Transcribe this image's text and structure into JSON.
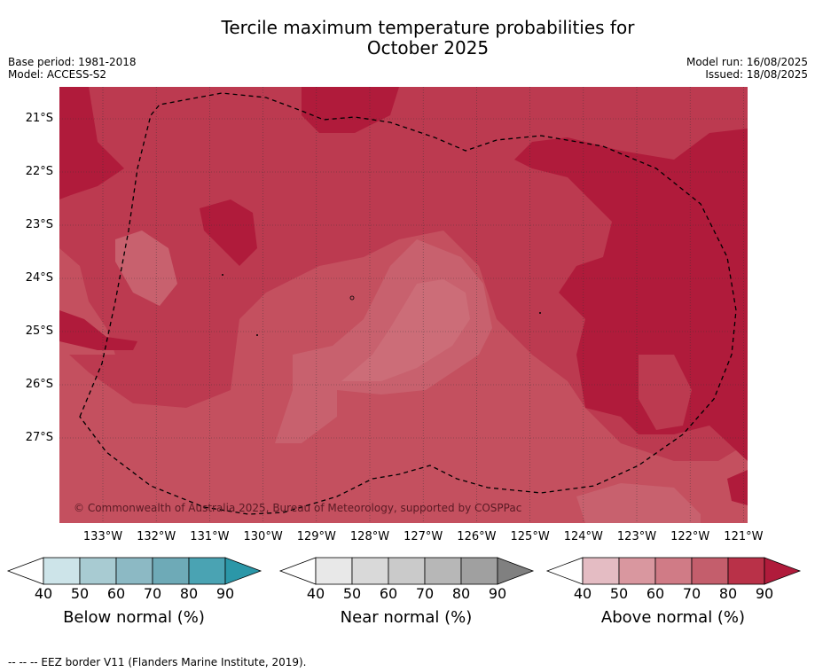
{
  "title_line1": "Tercile maximum temperature probabilities for",
  "title_line2": "October 2025",
  "base_period": "Base period: 1981-2018",
  "model": "Model: ACCESS-S2",
  "model_run": "Model run: 16/08/2025",
  "issued": "Issued: 18/08/2025",
  "copyright": "© Commonwealth of Australia 2025, Bureau of Meteorology, supported by COSPPac",
  "lat_labels": [
    "21°S",
    "22°S",
    "23°S",
    "24°S",
    "25°S",
    "26°S",
    "27°S"
  ],
  "lon_labels": [
    "133°W",
    "132°W",
    "131°W",
    "130°W",
    "129°W",
    "128°W",
    "127°W",
    "126°W",
    "125°W",
    "124°W",
    "123°W",
    "122°W",
    "121°W"
  ],
  "legend": {
    "below": {
      "title": "Below normal (%)",
      "colors": [
        "#cde4e9",
        "#a8cbd2",
        "#8cb9c4",
        "#6eaab7",
        "#4aa3b3",
        "#2b97a8"
      ]
    },
    "near": {
      "title": "Near normal (%)",
      "colors": [
        "#e8e8e8",
        "#d9d9d9",
        "#cacaca",
        "#b7b7b7",
        "#a0a0a0",
        "#808080"
      ]
    },
    "above": {
      "title": "Above normal (%)",
      "colors": [
        "#e4bcc3",
        "#d9979f",
        "#d07b86",
        "#c45e6c",
        "#b93148",
        "#b01b3b"
      ]
    },
    "ticks": [
      "40",
      "50",
      "60",
      "70",
      "80",
      "90"
    ]
  },
  "footnote": "-- -- -- EEZ border V11 (Flanders Marine Institute, 2019)."
}
